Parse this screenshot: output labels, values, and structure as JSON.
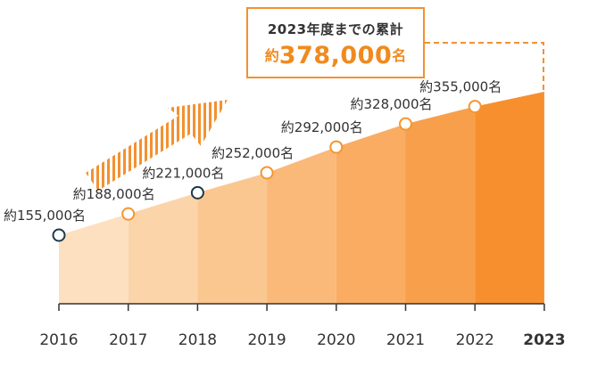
{
  "callout": {
    "heading": "2023年度までの累計",
    "prefix": "約",
    "value": "378,000",
    "unit": "名"
  },
  "chart_data": {
    "type": "area",
    "categories": [
      "2016",
      "2017",
      "2018",
      "2019",
      "2020",
      "2021",
      "2022",
      "2023"
    ],
    "values": [
      155000,
      188000,
      221000,
      252000,
      292000,
      328000,
      355000,
      378000
    ],
    "labels": [
      "約155,000名",
      "約188,000名",
      "約221,000名",
      "約252,000名",
      "約292,000名",
      "約328,000名",
      "約355,000名"
    ],
    "highlight_category": "2023",
    "grid": false,
    "legend": "none",
    "colors": {
      "bands": [
        "#fde0c0",
        "#fcd4aa",
        "#fbc791",
        "#fab979",
        "#f9ac62",
        "#f89f4b",
        "#f78f2e"
      ],
      "marker_stroke_orange": "#f5962f",
      "marker_stroke_dark": "#1d3a4a",
      "accent": "#f39130",
      "axis": "#333333"
    }
  }
}
